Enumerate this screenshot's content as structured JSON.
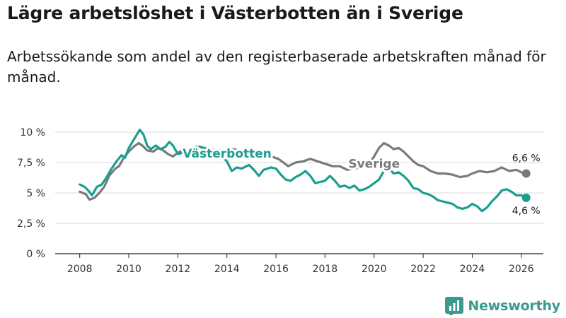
{
  "title": "Lägre arbetslöshet i Västerbotten än i Sverige",
  "subtitle": "Arbetssökande som andel av den registerbaserade arbetskraften månad för månad.",
  "brand": {
    "name": "Newsworthy",
    "icon": "bar-chart-logo-icon"
  },
  "colors": {
    "vasterbotten": "#1a9e8f",
    "sverige": "#7a7a7a",
    "grid": "#d9d9d9",
    "axis": "#222222"
  },
  "chart_data": {
    "type": "line",
    "title": "Lägre arbetslöshet i Västerbotten än i Sverige",
    "xlabel": "",
    "ylabel": "",
    "xlim": [
      2007.0,
      2026.9
    ],
    "ylim": [
      0,
      10
    ],
    "x_ticks": [
      2008,
      2010,
      2012,
      2014,
      2016,
      2018,
      2020,
      2022,
      2024,
      2026
    ],
    "x_tick_labels": [
      "2008",
      "2010",
      "2012",
      "2014",
      "2016",
      "2018",
      "2020",
      "2022",
      "2024",
      "2026"
    ],
    "y_ticks": [
      0,
      2.5,
      5,
      7.5,
      10
    ],
    "y_tick_labels": [
      "0 %",
      "2,5 %",
      "5 %",
      "7,5 %",
      "10 %"
    ],
    "series": [
      {
        "name": "Sverige",
        "label": "Sverige",
        "end_label": "6,6 %",
        "points": [
          [
            2008.0,
            5.1
          ],
          [
            2008.25,
            4.9
          ],
          [
            2008.4,
            4.45
          ],
          [
            2008.6,
            4.6
          ],
          [
            2008.8,
            5.0
          ],
          [
            2009.0,
            5.5
          ],
          [
            2009.2,
            6.4
          ],
          [
            2009.45,
            7.0
          ],
          [
            2009.6,
            7.2
          ],
          [
            2009.8,
            7.9
          ],
          [
            2010.0,
            8.4
          ],
          [
            2010.2,
            8.8
          ],
          [
            2010.4,
            9.1
          ],
          [
            2010.55,
            8.9
          ],
          [
            2010.75,
            8.5
          ],
          [
            2011.0,
            8.4
          ],
          [
            2011.2,
            8.7
          ],
          [
            2011.4,
            8.5
          ],
          [
            2011.6,
            8.2
          ],
          [
            2011.8,
            8.0
          ],
          [
            2012.0,
            8.3
          ],
          [
            2012.3,
            8.6
          ],
          [
            2012.6,
            8.7
          ],
          [
            2012.9,
            8.8
          ],
          [
            2013.2,
            8.6
          ],
          [
            2013.6,
            8.5
          ],
          [
            2014.0,
            8.5
          ],
          [
            2014.3,
            8.6
          ],
          [
            2014.6,
            8.4
          ],
          [
            2015.0,
            8.3
          ],
          [
            2015.4,
            8.2
          ],
          [
            2015.8,
            8.0
          ],
          [
            2016.1,
            7.8
          ],
          [
            2016.3,
            7.5
          ],
          [
            2016.5,
            7.2
          ],
          [
            2016.8,
            7.5
          ],
          [
            2017.1,
            7.6
          ],
          [
            2017.4,
            7.8
          ],
          [
            2017.7,
            7.6
          ],
          [
            2018.0,
            7.4
          ],
          [
            2018.3,
            7.2
          ],
          [
            2018.6,
            7.2
          ],
          [
            2018.9,
            6.9
          ],
          [
            2019.2,
            7.0
          ],
          [
            2019.5,
            7.1
          ],
          [
            2019.8,
            7.4
          ],
          [
            2020.0,
            8.0
          ],
          [
            2020.2,
            8.7
          ],
          [
            2020.4,
            9.1
          ],
          [
            2020.6,
            8.9
          ],
          [
            2020.8,
            8.6
          ],
          [
            2021.0,
            8.7
          ],
          [
            2021.2,
            8.4
          ],
          [
            2021.4,
            8.0
          ],
          [
            2021.6,
            7.6
          ],
          [
            2021.8,
            7.3
          ],
          [
            2022.0,
            7.2
          ],
          [
            2022.3,
            6.8
          ],
          [
            2022.6,
            6.6
          ],
          [
            2022.9,
            6.6
          ],
          [
            2023.2,
            6.5
          ],
          [
            2023.5,
            6.3
          ],
          [
            2023.8,
            6.4
          ],
          [
            2024.0,
            6.6
          ],
          [
            2024.3,
            6.8
          ],
          [
            2024.6,
            6.7
          ],
          [
            2024.9,
            6.8
          ],
          [
            2025.2,
            7.1
          ],
          [
            2025.5,
            6.8
          ],
          [
            2025.8,
            6.9
          ],
          [
            2026.0,
            6.7
          ],
          [
            2026.2,
            6.6
          ]
        ]
      },
      {
        "name": "Västerbotten",
        "label": "Västerbotten",
        "end_label": "4,6 %",
        "points": [
          [
            2008.0,
            5.7
          ],
          [
            2008.2,
            5.5
          ],
          [
            2008.35,
            5.2
          ],
          [
            2008.5,
            4.8
          ],
          [
            2008.7,
            5.5
          ],
          [
            2008.9,
            5.7
          ],
          [
            2009.1,
            6.3
          ],
          [
            2009.3,
            7.0
          ],
          [
            2009.5,
            7.6
          ],
          [
            2009.7,
            8.1
          ],
          [
            2009.85,
            7.9
          ],
          [
            2010.0,
            8.7
          ],
          [
            2010.15,
            9.2
          ],
          [
            2010.3,
            9.7
          ],
          [
            2010.45,
            10.2
          ],
          [
            2010.6,
            9.8
          ],
          [
            2010.75,
            8.9
          ],
          [
            2010.9,
            8.6
          ],
          [
            2011.1,
            8.9
          ],
          [
            2011.3,
            8.6
          ],
          [
            2011.5,
            8.8
          ],
          [
            2011.65,
            9.2
          ],
          [
            2011.8,
            8.9
          ],
          [
            2012.0,
            8.2
          ],
          [
            2012.2,
            8.3
          ],
          [
            2012.5,
            8.7
          ],
          [
            2012.8,
            8.8
          ],
          [
            2013.1,
            8.7
          ],
          [
            2013.4,
            8.5
          ],
          [
            2013.7,
            8.2
          ],
          [
            2014.0,
            7.6
          ],
          [
            2014.2,
            6.8
          ],
          [
            2014.4,
            7.1
          ],
          [
            2014.6,
            7.0
          ],
          [
            2014.9,
            7.3
          ],
          [
            2015.1,
            6.9
          ],
          [
            2015.3,
            6.4
          ],
          [
            2015.5,
            6.9
          ],
          [
            2015.8,
            7.1
          ],
          [
            2016.0,
            7.0
          ],
          [
            2016.2,
            6.5
          ],
          [
            2016.4,
            6.1
          ],
          [
            2016.6,
            6.0
          ],
          [
            2016.8,
            6.3
          ],
          [
            2017.0,
            6.5
          ],
          [
            2017.2,
            6.8
          ],
          [
            2017.4,
            6.4
          ],
          [
            2017.6,
            5.8
          ],
          [
            2017.8,
            5.9
          ],
          [
            2018.0,
            6.0
          ],
          [
            2018.2,
            6.4
          ],
          [
            2018.4,
            6.0
          ],
          [
            2018.6,
            5.5
          ],
          [
            2018.8,
            5.6
          ],
          [
            2019.0,
            5.4
          ],
          [
            2019.2,
            5.6
          ],
          [
            2019.4,
            5.2
          ],
          [
            2019.6,
            5.3
          ],
          [
            2019.8,
            5.5
          ],
          [
            2020.0,
            5.8
          ],
          [
            2020.2,
            6.1
          ],
          [
            2020.4,
            6.8
          ],
          [
            2020.6,
            7.0
          ],
          [
            2020.8,
            6.6
          ],
          [
            2021.0,
            6.7
          ],
          [
            2021.2,
            6.4
          ],
          [
            2021.4,
            6.0
          ],
          [
            2021.6,
            5.4
          ],
          [
            2021.8,
            5.3
          ],
          [
            2022.0,
            5.0
          ],
          [
            2022.2,
            4.9
          ],
          [
            2022.4,
            4.7
          ],
          [
            2022.6,
            4.4
          ],
          [
            2022.8,
            4.3
          ],
          [
            2023.0,
            4.2
          ],
          [
            2023.2,
            4.1
          ],
          [
            2023.4,
            3.8
          ],
          [
            2023.6,
            3.7
          ],
          [
            2023.8,
            3.8
          ],
          [
            2024.0,
            4.1
          ],
          [
            2024.2,
            3.9
          ],
          [
            2024.4,
            3.5
          ],
          [
            2024.6,
            3.8
          ],
          [
            2024.8,
            4.3
          ],
          [
            2025.0,
            4.7
          ],
          [
            2025.2,
            5.2
          ],
          [
            2025.4,
            5.3
          ],
          [
            2025.6,
            5.1
          ],
          [
            2025.8,
            4.8
          ],
          [
            2026.0,
            4.8
          ],
          [
            2026.2,
            4.6
          ]
        ]
      }
    ]
  }
}
